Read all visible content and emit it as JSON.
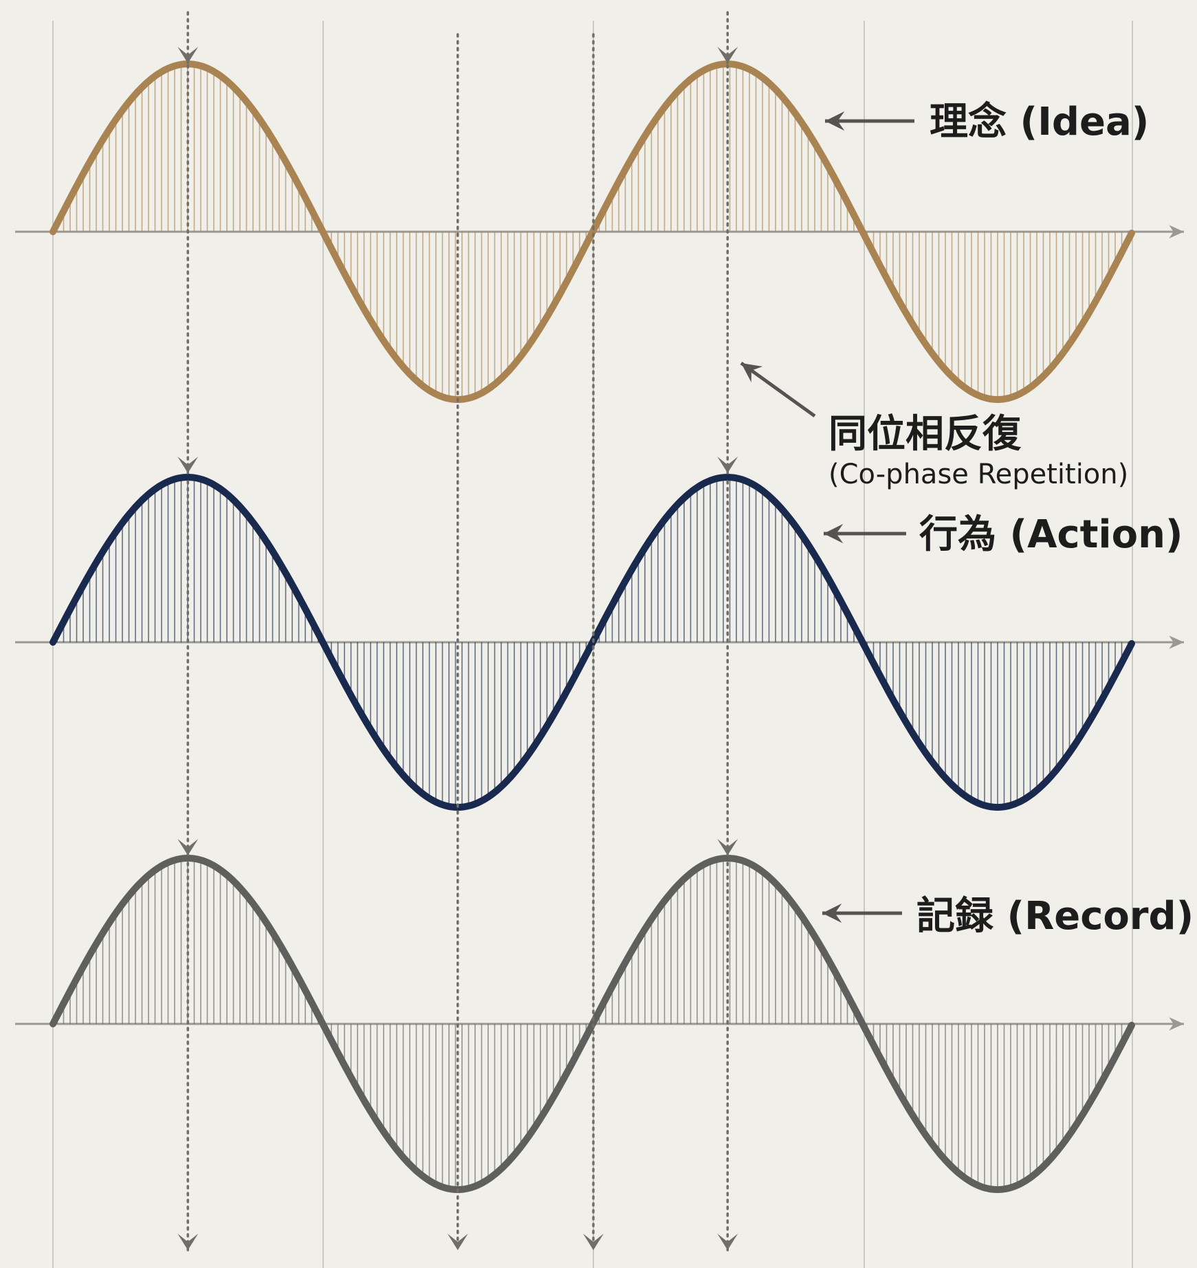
{
  "diagram": {
    "waves": [
      {
        "id": "idea",
        "label": "理念 (Idea)",
        "color": "#a98452"
      },
      {
        "id": "action",
        "label": "行為 (Action)",
        "color": "#1a2a4e"
      },
      {
        "id": "record",
        "label": "記録 (Record)",
        "color": "#5f5f5d"
      }
    ],
    "cophase": {
      "label": "同位相反復",
      "sublabel": "(Co-phase Repetition)"
    },
    "colors": {
      "background": "#f0efe9",
      "grid": "#c9c8c2",
      "axis": "#9a9890",
      "dotted": "#6f6e69",
      "annotation": "#555452"
    },
    "cycles": 2
  }
}
